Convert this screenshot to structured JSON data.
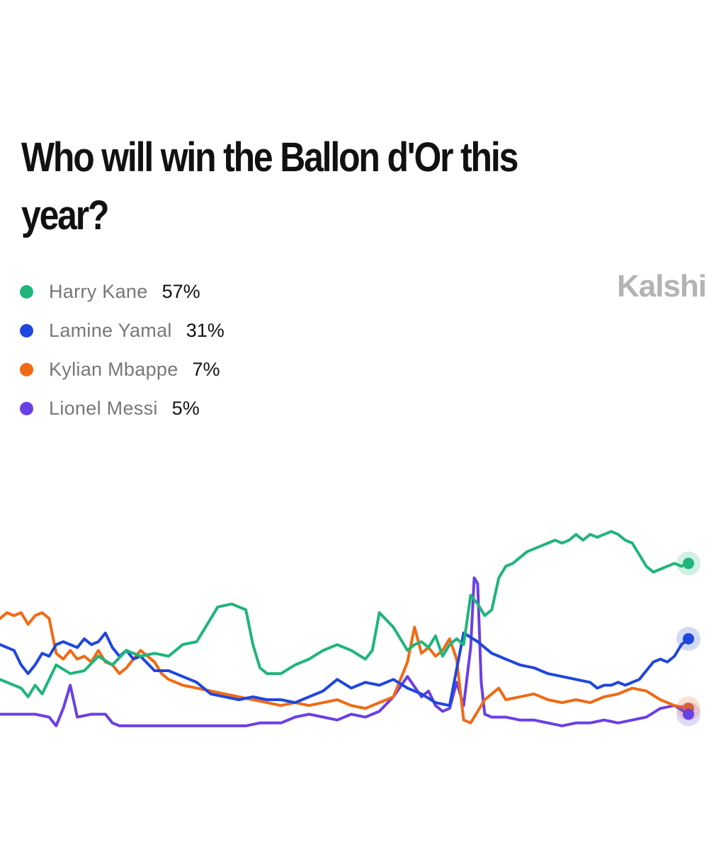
{
  "header": {
    "title": "Who will win the Ballon d'Or this year?",
    "brand": "Kalshi"
  },
  "legend": [
    {
      "name": "Harry Kane",
      "value": "57%",
      "color": "#1fb57a"
    },
    {
      "name": "Lamine Yamal",
      "value": "31%",
      "color": "#1f46dd"
    },
    {
      "name": "Kylian Mbappe",
      "value": "7%",
      "color": "#f06a14"
    },
    {
      "name": "Lionel Messi",
      "value": "5%",
      "color": "#6a3fe6"
    }
  ],
  "chart_data": {
    "type": "line",
    "x_axis_visible": false,
    "y_axis_visible": false,
    "grid": false,
    "legend_placement": "top-left",
    "ylim": [
      0,
      100
    ],
    "series": [
      {
        "name": "Harry Kane",
        "color": "#1fb57a",
        "final_value": 57,
        "points": [
          [
            0,
            17
          ],
          [
            2,
            15
          ],
          [
            3,
            14
          ],
          [
            4,
            11
          ],
          [
            5,
            15
          ],
          [
            6,
            12
          ],
          [
            8,
            22
          ],
          [
            10,
            19
          ],
          [
            12,
            20
          ],
          [
            14,
            25
          ],
          [
            16,
            22
          ],
          [
            18,
            27
          ],
          [
            20,
            25
          ],
          [
            22,
            26
          ],
          [
            24,
            25
          ],
          [
            26,
            29
          ],
          [
            28,
            30
          ],
          [
            30,
            38
          ],
          [
            31,
            42
          ],
          [
            33,
            43
          ],
          [
            35,
            41
          ],
          [
            36,
            29
          ],
          [
            37,
            21
          ],
          [
            38,
            19
          ],
          [
            40,
            19
          ],
          [
            42,
            22
          ],
          [
            44,
            24
          ],
          [
            46,
            27
          ],
          [
            48,
            29
          ],
          [
            50,
            27
          ],
          [
            52,
            24
          ],
          [
            53,
            27
          ],
          [
            54,
            40
          ],
          [
            56,
            35
          ],
          [
            58,
            27
          ],
          [
            59,
            29
          ],
          [
            60,
            30
          ],
          [
            61,
            28
          ],
          [
            62,
            32
          ],
          [
            63,
            25
          ],
          [
            64,
            29
          ],
          [
            65,
            31
          ],
          [
            66,
            29
          ],
          [
            67,
            46
          ],
          [
            68,
            43
          ],
          [
            69,
            39
          ],
          [
            70,
            41
          ],
          [
            71,
            52
          ],
          [
            72,
            56
          ],
          [
            73,
            57
          ],
          [
            74,
            59
          ],
          [
            75,
            61
          ],
          [
            76,
            62
          ],
          [
            77,
            63
          ],
          [
            78,
            64
          ],
          [
            79,
            65
          ],
          [
            80,
            64
          ],
          [
            81,
            65
          ],
          [
            82,
            67
          ],
          [
            83,
            65
          ],
          [
            84,
            67
          ],
          [
            85,
            66
          ],
          [
            86,
            67
          ],
          [
            87,
            68
          ],
          [
            88,
            67
          ],
          [
            89,
            65
          ],
          [
            90,
            64
          ],
          [
            91,
            60
          ],
          [
            92,
            56
          ],
          [
            93,
            54
          ],
          [
            94,
            55
          ],
          [
            95,
            56
          ],
          [
            96,
            57
          ],
          [
            97,
            56
          ],
          [
            98,
            57
          ]
        ]
      },
      {
        "name": "Lamine Yamal",
        "color": "#1f46dd",
        "final_value": 31,
        "points": [
          [
            0,
            29
          ],
          [
            2,
            27
          ],
          [
            3,
            22
          ],
          [
            4,
            19
          ],
          [
            5,
            22
          ],
          [
            6,
            26
          ],
          [
            7,
            25
          ],
          [
            8,
            29
          ],
          [
            9,
            30
          ],
          [
            10,
            29
          ],
          [
            11,
            28
          ],
          [
            12,
            31
          ],
          [
            13,
            29
          ],
          [
            14,
            30
          ],
          [
            15,
            33
          ],
          [
            16,
            28
          ],
          [
            17,
            25
          ],
          [
            18,
            27
          ],
          [
            19,
            24
          ],
          [
            20,
            25
          ],
          [
            22,
            20
          ],
          [
            24,
            20
          ],
          [
            26,
            18
          ],
          [
            28,
            16
          ],
          [
            30,
            12
          ],
          [
            32,
            11
          ],
          [
            34,
            10
          ],
          [
            36,
            11
          ],
          [
            38,
            10
          ],
          [
            40,
            10
          ],
          [
            42,
            9
          ],
          [
            44,
            11
          ],
          [
            46,
            13
          ],
          [
            48,
            17
          ],
          [
            50,
            14
          ],
          [
            52,
            16
          ],
          [
            54,
            15
          ],
          [
            56,
            17
          ],
          [
            58,
            14
          ],
          [
            60,
            12
          ],
          [
            62,
            9
          ],
          [
            64,
            8
          ],
          [
            66,
            33
          ],
          [
            68,
            30
          ],
          [
            70,
            26
          ],
          [
            72,
            24
          ],
          [
            74,
            22
          ],
          [
            76,
            21
          ],
          [
            78,
            19
          ],
          [
            80,
            18
          ],
          [
            82,
            17
          ],
          [
            84,
            16
          ],
          [
            85,
            14
          ],
          [
            86,
            15
          ],
          [
            87,
            15
          ],
          [
            88,
            16
          ],
          [
            89,
            15
          ],
          [
            90,
            16
          ],
          [
            91,
            17
          ],
          [
            92,
            20
          ],
          [
            93,
            23
          ],
          [
            94,
            24
          ],
          [
            95,
            23
          ],
          [
            96,
            25
          ],
          [
            97,
            29
          ],
          [
            98,
            31
          ]
        ]
      },
      {
        "name": "Kylian Mbappe",
        "color": "#f06a14",
        "final_value": 7,
        "points": [
          [
            0,
            38
          ],
          [
            1,
            40
          ],
          [
            2,
            39
          ],
          [
            3,
            40
          ],
          [
            4,
            36
          ],
          [
            5,
            39
          ],
          [
            6,
            40
          ],
          [
            7,
            38
          ],
          [
            8,
            26
          ],
          [
            9,
            24
          ],
          [
            10,
            27
          ],
          [
            11,
            24
          ],
          [
            12,
            25
          ],
          [
            13,
            23
          ],
          [
            14,
            27
          ],
          [
            15,
            23
          ],
          [
            16,
            22
          ],
          [
            17,
            19
          ],
          [
            18,
            21
          ],
          [
            19,
            24
          ],
          [
            20,
            27
          ],
          [
            21,
            25
          ],
          [
            22,
            23
          ],
          [
            23,
            19
          ],
          [
            24,
            17
          ],
          [
            25,
            16
          ],
          [
            26,
            15
          ],
          [
            28,
            14
          ],
          [
            30,
            13
          ],
          [
            32,
            12
          ],
          [
            34,
            11
          ],
          [
            36,
            10
          ],
          [
            38,
            9
          ],
          [
            40,
            8
          ],
          [
            42,
            9
          ],
          [
            44,
            8
          ],
          [
            46,
            9
          ],
          [
            48,
            10
          ],
          [
            50,
            8
          ],
          [
            52,
            7
          ],
          [
            54,
            9
          ],
          [
            56,
            11
          ],
          [
            58,
            23
          ],
          [
            59,
            35
          ],
          [
            60,
            26
          ],
          [
            61,
            28
          ],
          [
            62,
            25
          ],
          [
            63,
            27
          ],
          [
            64,
            31
          ],
          [
            65,
            24
          ],
          [
            66,
            3
          ],
          [
            67,
            2
          ],
          [
            68,
            6
          ],
          [
            69,
            10
          ],
          [
            70,
            12
          ],
          [
            71,
            14
          ],
          [
            72,
            10
          ],
          [
            74,
            11
          ],
          [
            76,
            12
          ],
          [
            78,
            10
          ],
          [
            80,
            9
          ],
          [
            82,
            10
          ],
          [
            84,
            9
          ],
          [
            86,
            11
          ],
          [
            88,
            12
          ],
          [
            90,
            14
          ],
          [
            92,
            13
          ],
          [
            94,
            10
          ],
          [
            96,
            8
          ],
          [
            98,
            7
          ]
        ]
      },
      {
        "name": "Lionel Messi",
        "color": "#6a3fe6",
        "final_value": 5,
        "points": [
          [
            0,
            5
          ],
          [
            3,
            5
          ],
          [
            5,
            5
          ],
          [
            7,
            4
          ],
          [
            8,
            1
          ],
          [
            9,
            7
          ],
          [
            10,
            15
          ],
          [
            11,
            4
          ],
          [
            13,
            5
          ],
          [
            15,
            5
          ],
          [
            16,
            2
          ],
          [
            17,
            1
          ],
          [
            20,
            1
          ],
          [
            25,
            1
          ],
          [
            30,
            1
          ],
          [
            35,
            1
          ],
          [
            37,
            2
          ],
          [
            40,
            2
          ],
          [
            42,
            4
          ],
          [
            44,
            5
          ],
          [
            46,
            4
          ],
          [
            48,
            3
          ],
          [
            50,
            5
          ],
          [
            52,
            4
          ],
          [
            54,
            6
          ],
          [
            56,
            11
          ],
          [
            58,
            18
          ],
          [
            60,
            11
          ],
          [
            61,
            13
          ],
          [
            62,
            8
          ],
          [
            63,
            6
          ],
          [
            64,
            7
          ],
          [
            65,
            16
          ],
          [
            66,
            8
          ],
          [
            67,
            28
          ],
          [
            67.5,
            52
          ],
          [
            68,
            50
          ],
          [
            68.5,
            16
          ],
          [
            69,
            5
          ],
          [
            70,
            4
          ],
          [
            72,
            4
          ],
          [
            74,
            3
          ],
          [
            76,
            3
          ],
          [
            78,
            2
          ],
          [
            80,
            1
          ],
          [
            82,
            2
          ],
          [
            84,
            2
          ],
          [
            86,
            3
          ],
          [
            88,
            2
          ],
          [
            90,
            3
          ],
          [
            92,
            4
          ],
          [
            94,
            7
          ],
          [
            96,
            8
          ],
          [
            98,
            5
          ]
        ]
      }
    ]
  }
}
